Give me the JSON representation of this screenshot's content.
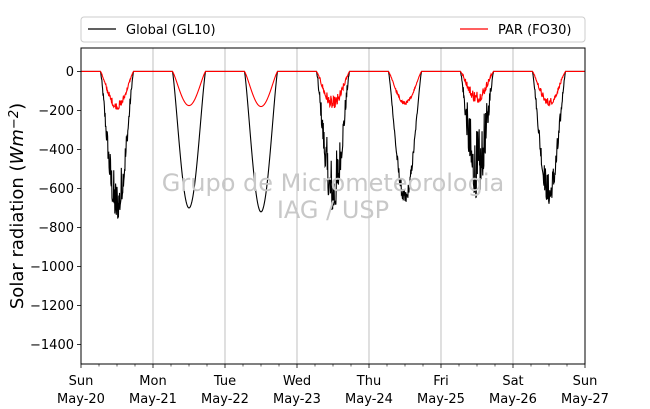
{
  "chart_data": {
    "type": "line",
    "ylabel_main": "Solar radiation (",
    "ylabel_italic": "Wm",
    "ylabel_exp": "−2",
    "ylabel_close": ")",
    "ylim": [
      -1500,
      120
    ],
    "xlim": [
      0,
      7
    ],
    "yticks": [
      0,
      -200,
      -400,
      -600,
      -800,
      -1000,
      -1200,
      -1400
    ],
    "ytick_labels": [
      "0",
      "−200",
      "−400",
      "−600",
      "−800",
      "−1000",
      "−1200",
      "−1400"
    ],
    "xticks": [
      {
        "x": 0,
        "day": "Sun",
        "date": "May-20"
      },
      {
        "x": 1,
        "day": "Mon",
        "date": "May-21"
      },
      {
        "x": 2,
        "day": "Tue",
        "date": "May-22"
      },
      {
        "x": 3,
        "day": "Wed",
        "date": "May-23"
      },
      {
        "x": 4,
        "day": "Thu",
        "date": "May-24"
      },
      {
        "x": 5,
        "day": "Fri",
        "date": "May-25"
      },
      {
        "x": 6,
        "day": "Sat",
        "date": "May-26"
      },
      {
        "x": 7,
        "day": "Sun",
        "date": "May-27"
      }
    ],
    "grid": "vertical",
    "legend": {
      "placement": "top, above plot",
      "entries": [
        "Global (GL10)",
        "PAR (FO30)"
      ]
    },
    "series": [
      {
        "name": "Global (GL10)",
        "color": "#000000",
        "days": [
          {
            "start": 0.27,
            "end": 0.73,
            "peak": -760,
            "noise": 0.28
          },
          {
            "start": 1.27,
            "end": 1.73,
            "peak": -700,
            "noise": 0.02
          },
          {
            "start": 2.27,
            "end": 2.73,
            "peak": -720,
            "noise": 0.02
          },
          {
            "start": 3.27,
            "end": 3.73,
            "peak": -720,
            "noise": 0.38
          },
          {
            "start": 4.27,
            "end": 4.73,
            "peak": -680,
            "noise": 0.1
          },
          {
            "start": 5.27,
            "end": 5.73,
            "peak": -650,
            "noise": 0.5
          },
          {
            "start": 6.27,
            "end": 6.73,
            "peak": -680,
            "noise": 0.22
          }
        ]
      },
      {
        "name": "PAR (FO30)",
        "color": "#ff0000",
        "days": [
          {
            "start": 0.27,
            "end": 0.73,
            "peak": -195,
            "noise": 0.2
          },
          {
            "start": 1.27,
            "end": 1.73,
            "peak": -175,
            "noise": 0.02
          },
          {
            "start": 2.27,
            "end": 2.73,
            "peak": -180,
            "noise": 0.02
          },
          {
            "start": 3.27,
            "end": 3.73,
            "peak": -190,
            "noise": 0.3
          },
          {
            "start": 4.27,
            "end": 4.73,
            "peak": -170,
            "noise": 0.1
          },
          {
            "start": 5.27,
            "end": 5.73,
            "peak": -160,
            "noise": 0.4
          },
          {
            "start": 6.27,
            "end": 6.73,
            "peak": -175,
            "noise": 0.22
          }
        ]
      }
    ],
    "watermark": [
      "Grupo de Micrometeorologia",
      "IAG / USP"
    ]
  }
}
